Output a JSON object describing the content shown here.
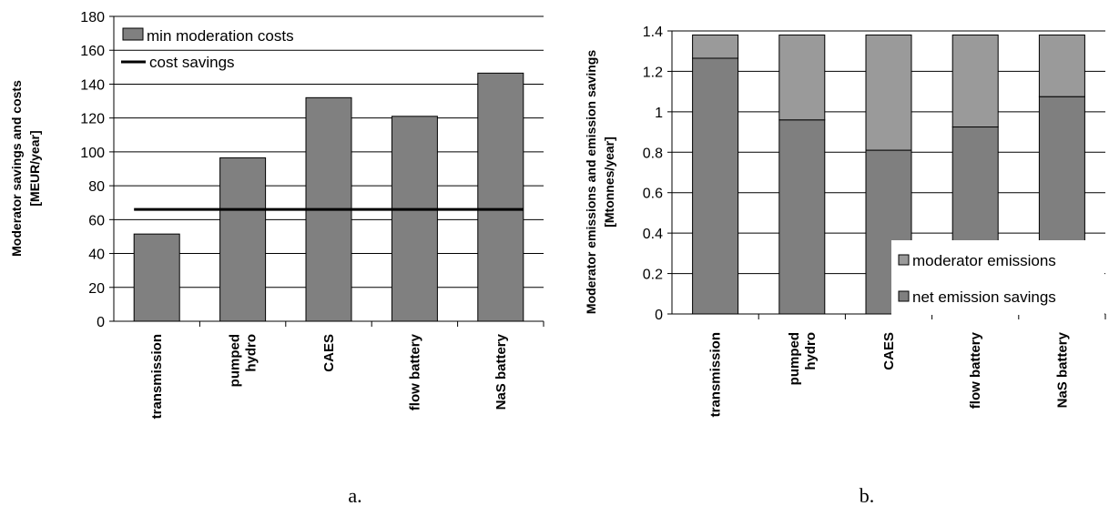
{
  "chart_data": [
    {
      "type": "bar",
      "panel_label": "a.",
      "ylabel": "Moderator savings and costs",
      "ylabel_units": "[MEUR/year]",
      "ylim": [
        0,
        180
      ],
      "yticks": [
        0,
        20,
        40,
        60,
        80,
        100,
        120,
        140,
        160,
        180
      ],
      "grid": true,
      "legend_position": "top-left",
      "categories": [
        "transmission",
        "pumped hydro",
        "CAES",
        "flow battery",
        "NaS battery"
      ],
      "series": [
        {
          "name": "min moderation costs",
          "kind": "bar",
          "color": "#808080",
          "values": [
            51.5,
            96.5,
            132,
            121,
            146.5
          ]
        },
        {
          "name": "cost savings",
          "kind": "line",
          "color": "#000000",
          "values": [
            66,
            66,
            66,
            66,
            66
          ]
        }
      ]
    },
    {
      "type": "bar",
      "stacked": true,
      "panel_label": "b.",
      "ylabel": "Moderator emissions and emission savings",
      "ylabel_units": "[Mtonnes/year]",
      "ylim": [
        0,
        1.4
      ],
      "yticks": [
        "0",
        "0.2",
        "0.4",
        "0.6",
        "0.8",
        "1",
        "1.2",
        "1.4"
      ],
      "grid": true,
      "legend_position": "bottom-right",
      "categories": [
        "transmission",
        "pumped hydro",
        "CAES",
        "flow battery",
        "NaS battery"
      ],
      "series": [
        {
          "name": "net emission savings",
          "color": "#7f7f7f",
          "values": [
            1.265,
            0.96,
            0.81,
            0.925,
            1.075
          ]
        },
        {
          "name": "moderator emissions",
          "color": "#9a9a9a",
          "values": [
            0.115,
            0.42,
            0.57,
            0.455,
            0.305
          ]
        }
      ]
    }
  ]
}
